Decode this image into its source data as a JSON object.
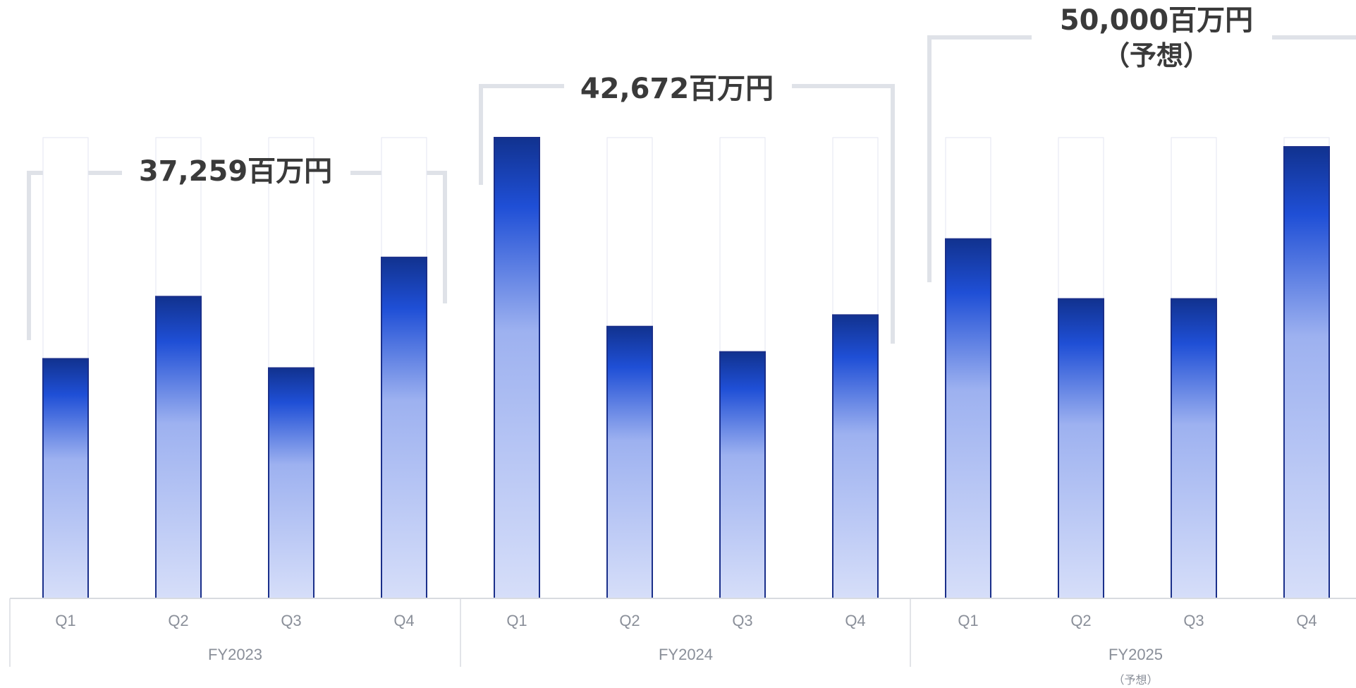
{
  "colors": {
    "bar_top_dark": "#11328f",
    "bar_mid": "#1f4fd6",
    "bar_light": "#9db1f0",
    "bar_bottom": "#d6def9",
    "bar_outline": "#1a2f8a",
    "track_outline": "#e3e6f1",
    "bracket": "#dfe2e8",
    "axis": "#d8dbe0",
    "total_text": "#3a3a3a",
    "tick_text": "#8a8f99"
  },
  "chart_data": {
    "type": "bar",
    "categories": [
      "Q1",
      "Q2",
      "Q3",
      "Q4"
    ],
    "groups": [
      {
        "name": "FY2023",
        "sub": "",
        "total": "37,259百万円",
        "total_sub": "",
        "quarters": [
          {
            "label": "Q1",
            "value": 52
          },
          {
            "label": "Q2",
            "value": 65.5
          },
          {
            "label": "Q3",
            "value": 50
          },
          {
            "label": "Q4",
            "value": 74
          }
        ]
      },
      {
        "name": "FY2024",
        "sub": "",
        "total": "42,672百万円",
        "total_sub": "",
        "quarters": [
          {
            "label": "Q1",
            "value": 100
          },
          {
            "label": "Q2",
            "value": 59
          },
          {
            "label": "Q3",
            "value": 53.5
          },
          {
            "label": "Q4",
            "value": 61.5
          }
        ]
      },
      {
        "name": "FY2025",
        "sub": "（予想）",
        "total": "50,000百万円",
        "total_sub": "（予想）",
        "quarters": [
          {
            "label": "Q1",
            "value": 78
          },
          {
            "label": "Q2",
            "value": 65
          },
          {
            "label": "Q3",
            "value": 65
          },
          {
            "label": "Q4",
            "value": 98
          }
        ]
      }
    ],
    "ylim": [
      0,
      100
    ],
    "grid": false,
    "legend": "none"
  }
}
